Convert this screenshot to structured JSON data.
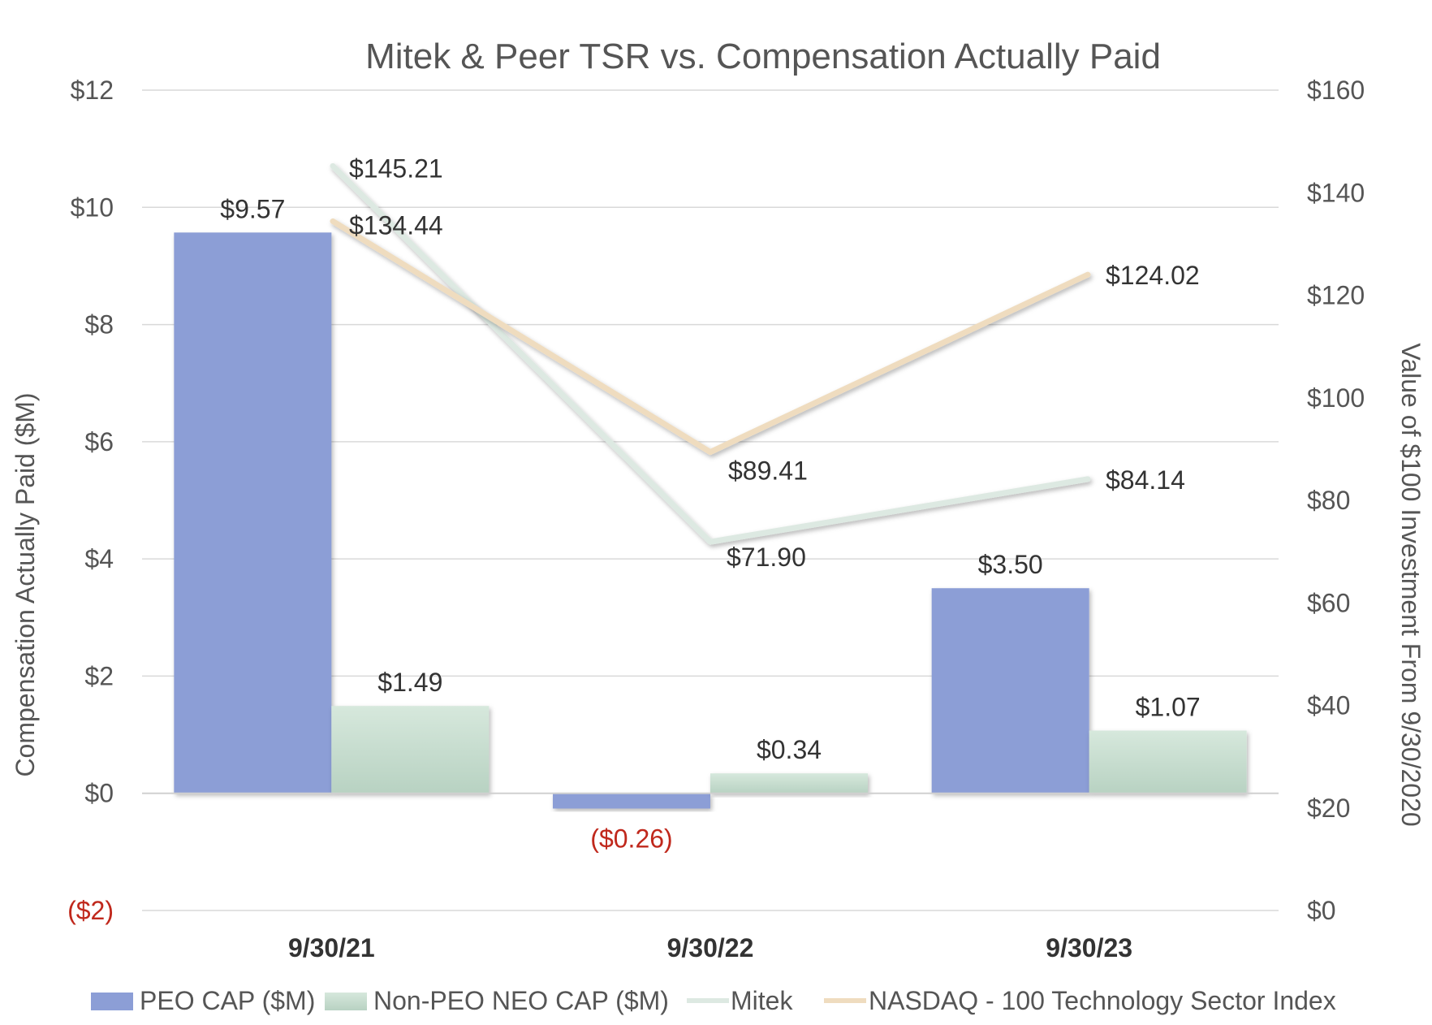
{
  "chart_data": {
    "type": "bar",
    "title": "Mitek & Peer TSR vs. Compensation Actually Paid",
    "categories": [
      "9/30/21",
      "9/30/22",
      "9/30/23"
    ],
    "y_left": {
      "label": "Compensation Actually Paid ($M)",
      "ylim": [
        -2,
        12
      ],
      "ticks": [
        -2,
        0,
        2,
        4,
        6,
        8,
        10,
        12
      ],
      "tick_labels": [
        "($2)",
        "$0",
        "$2",
        "$4",
        "$6",
        "$8",
        "$10",
        "$12"
      ]
    },
    "y_right": {
      "label": "Value of $100 Investment From 9/30/2020",
      "ylim": [
        0,
        160
      ],
      "ticks": [
        0,
        20,
        40,
        60,
        80,
        100,
        120,
        140,
        160
      ],
      "tick_labels": [
        "$0",
        "$20",
        "$40",
        "$60",
        "$80",
        "$100",
        "$120",
        "$140",
        "$160"
      ]
    },
    "series": [
      {
        "name": "PEO CAP ($M)",
        "kind": "bar",
        "axis": "left",
        "color": "#8c9ed6",
        "values": [
          9.57,
          -0.26,
          3.5
        ],
        "labels": [
          "$9.57",
          "($0.26)",
          "$3.50"
        ]
      },
      {
        "name": "Non-PEO NEO CAP ($M)",
        "kind": "bar",
        "axis": "left",
        "color": "#cfe4d8",
        "values": [
          1.49,
          0.34,
          1.07
        ],
        "labels": [
          "$1.49",
          "$0.34",
          "$1.07"
        ]
      },
      {
        "name": "Mitek",
        "kind": "line",
        "axis": "right",
        "color": "#dde9e2",
        "values": [
          145.21,
          71.9,
          84.14
        ],
        "labels": [
          "$145.21",
          "$71.90",
          "$84.14"
        ]
      },
      {
        "name": "NASDAQ - 100 Technology Sector Index",
        "kind": "line",
        "axis": "right",
        "color": "#efdcbf",
        "values": [
          134.44,
          89.41,
          124.02
        ],
        "labels": [
          "$134.44",
          "$89.41",
          "$124.02"
        ]
      }
    ],
    "legend_position": "bottom",
    "grid": true,
    "colors": {
      "negative": "#c0281c",
      "text": "#555555",
      "grid": "#d9d9d9"
    }
  }
}
